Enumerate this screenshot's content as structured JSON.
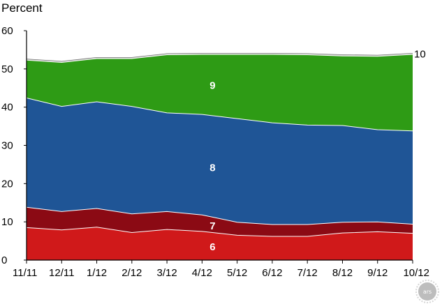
{
  "chart_data": {
    "type": "area",
    "stacked": true,
    "ylabel": "Percent",
    "ylim": [
      0,
      60
    ],
    "yticks": [
      0,
      10,
      20,
      30,
      40,
      50,
      60
    ],
    "categories": [
      "11/11",
      "12/11",
      "1/12",
      "2/12",
      "3/12",
      "4/12",
      "5/12",
      "6/12",
      "7/12",
      "8/12",
      "9/12",
      "10/12"
    ],
    "series": [
      {
        "name": "6",
        "color": "#d0191a",
        "values": [
          8.5,
          7.9,
          8.6,
          7.2,
          8.0,
          7.5,
          6.5,
          6.2,
          6.2,
          7.1,
          7.4,
          7.0
        ]
      },
      {
        "name": "7",
        "color": "#8b0a14",
        "values": [
          5.3,
          4.8,
          4.9,
          4.9,
          4.7,
          4.3,
          3.4,
          3.1,
          3.1,
          2.8,
          2.6,
          2.4
        ]
      },
      {
        "name": "8",
        "color": "#1f5596",
        "values": [
          28.6,
          27.5,
          27.9,
          28.1,
          25.8,
          26.3,
          27.1,
          26.6,
          26.0,
          25.3,
          24.1,
          24.4
        ]
      },
      {
        "name": "9",
        "color": "#2e9b15",
        "values": [
          9.9,
          11.5,
          11.3,
          12.5,
          15.2,
          15.7,
          16.8,
          17.9,
          18.4,
          18.2,
          19.2,
          20.0
        ]
      },
      {
        "name": "10",
        "color": "#c8c8c8",
        "values": [
          0.3,
          0.3,
          0.3,
          0.3,
          0.3,
          0.3,
          0.3,
          0.3,
          0.3,
          0.3,
          0.3,
          0.3
        ]
      }
    ]
  },
  "watermark": "ars"
}
